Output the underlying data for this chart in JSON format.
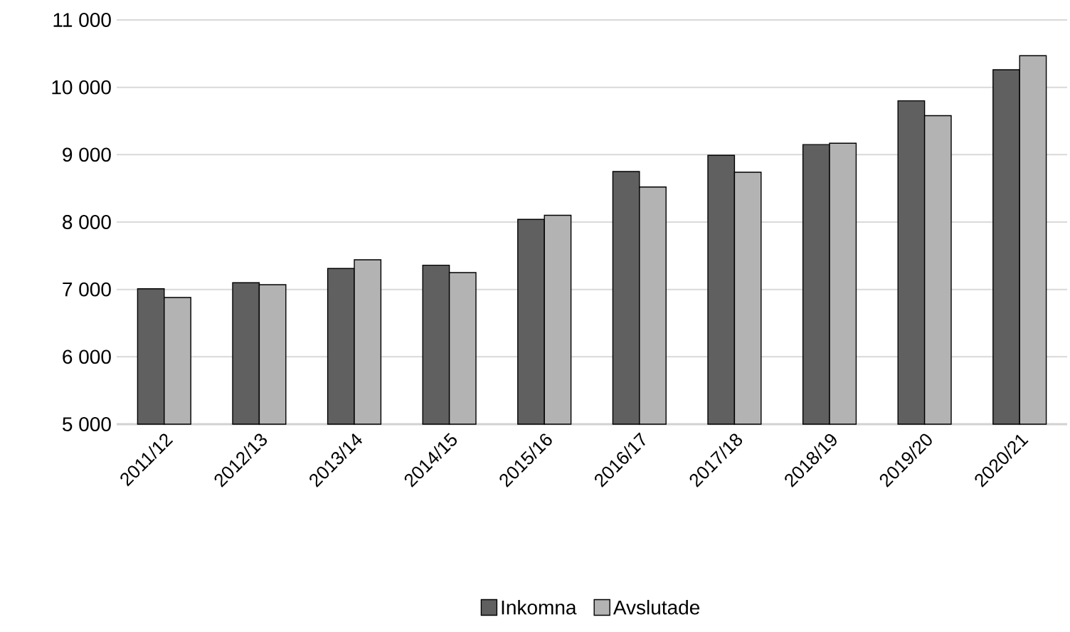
{
  "chart_data": {
    "type": "bar",
    "categories": [
      "2011/12",
      "2012/13",
      "2013/14",
      "2014/15",
      "2015/16",
      "2016/17",
      "2017/18",
      "2018/19",
      "2019/20",
      "2020/21"
    ],
    "series": [
      {
        "name": "Inkomna",
        "color": "#606060",
        "values": [
          7010,
          7100,
          7310,
          7360,
          8040,
          8750,
          8990,
          9150,
          9800,
          10260
        ]
      },
      {
        "name": "Avslutade",
        "color": "#b3b3b3",
        "values": [
          6880,
          7070,
          7440,
          7250,
          8100,
          8520,
          8740,
          9170,
          9580,
          10470
        ]
      }
    ],
    "ylim": [
      5000,
      11000
    ],
    "yticks": [
      {
        "value": 5000,
        "label": "5 000"
      },
      {
        "value": 6000,
        "label": "6 000"
      },
      {
        "value": 7000,
        "label": "7 000"
      },
      {
        "value": 8000,
        "label": "8 000"
      },
      {
        "value": 9000,
        "label": "9 000"
      },
      {
        "value": 10000,
        "label": "10 000"
      },
      {
        "value": 11000,
        "label": "11 000"
      }
    ],
    "grid": "y",
    "legend": "bottom"
  }
}
